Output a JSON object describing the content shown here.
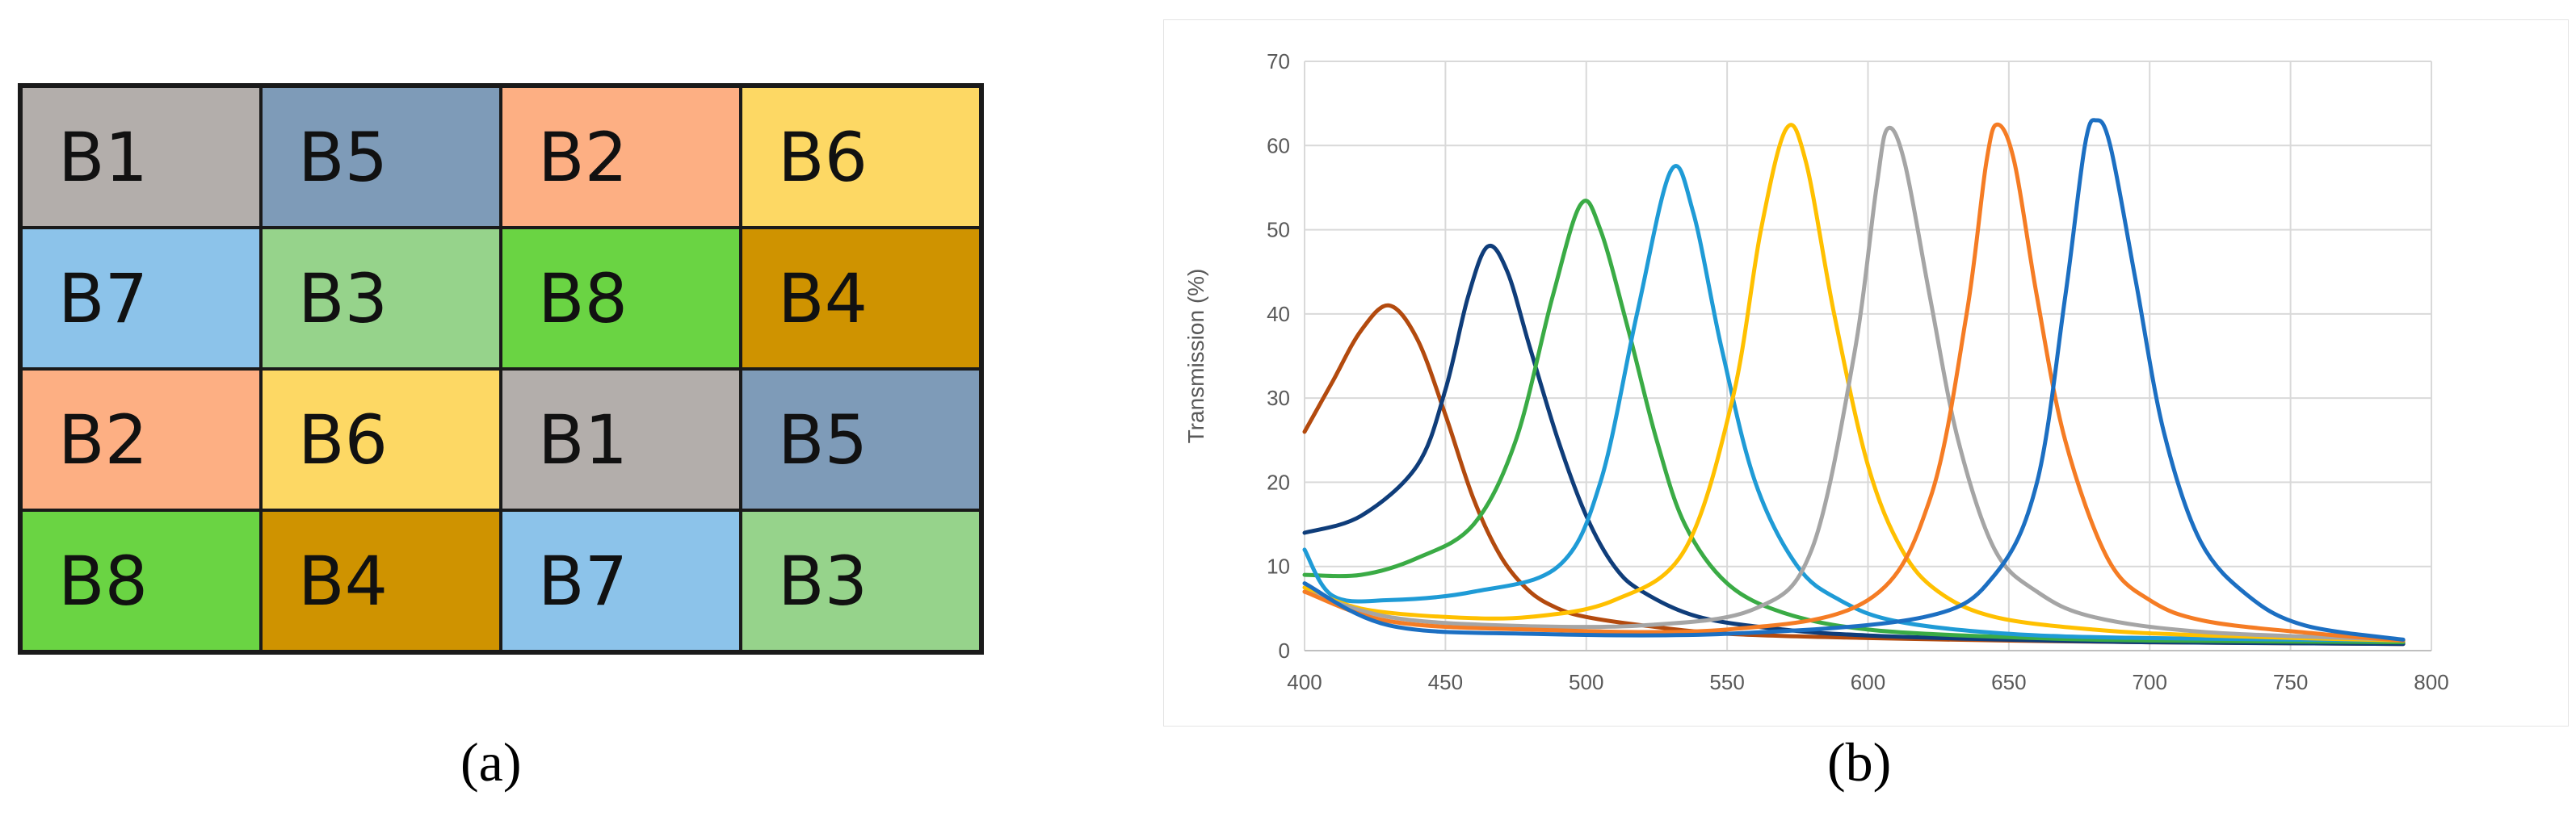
{
  "panel_a": {
    "label": "(a)",
    "rows": [
      [
        {
          "text": "B1",
          "color": "#b3aeab"
        },
        {
          "text": "B5",
          "color": "#7e9bb8"
        },
        {
          "text": "B2",
          "color": "#fdaf83"
        },
        {
          "text": "B6",
          "color": "#fdd864"
        }
      ],
      [
        {
          "text": "B7",
          "color": "#8cc3ea"
        },
        {
          "text": "B3",
          "color": "#96d38b"
        },
        {
          "text": "B8",
          "color": "#6ad443"
        },
        {
          "text": "B4",
          "color": "#cf9300"
        }
      ],
      [
        {
          "text": "B2",
          "color": "#fdaf83"
        },
        {
          "text": "B6",
          "color": "#fdd864"
        },
        {
          "text": "B1",
          "color": "#b3aeab"
        },
        {
          "text": "B5",
          "color": "#7e9bb8"
        }
      ],
      [
        {
          "text": "B8",
          "color": "#6ad443"
        },
        {
          "text": "B4",
          "color": "#cf9300"
        },
        {
          "text": "B7",
          "color": "#8cc3ea"
        },
        {
          "text": "B3",
          "color": "#96d38b"
        }
      ]
    ]
  },
  "panel_b": {
    "label": "(b)"
  },
  "chart_data": {
    "type": "line",
    "title": "",
    "xlabel": "",
    "ylabel": "Transmission (%)",
    "xlim": [
      400,
      800
    ],
    "ylim": [
      0,
      70
    ],
    "xticks": [
      400,
      450,
      500,
      550,
      600,
      650,
      700,
      750,
      800
    ],
    "yticks": [
      0,
      10,
      20,
      30,
      40,
      50,
      60,
      70
    ],
    "grid": true,
    "legend": "none",
    "series": [
      {
        "color": "#b34a0e",
        "points": [
          [
            400,
            26
          ],
          [
            410,
            32
          ],
          [
            420,
            38
          ],
          [
            430,
            41
          ],
          [
            440,
            37
          ],
          [
            450,
            28
          ],
          [
            460,
            18
          ],
          [
            470,
            11
          ],
          [
            480,
            7
          ],
          [
            490,
            5
          ],
          [
            500,
            4
          ],
          [
            520,
            3
          ],
          [
            550,
            2
          ],
          [
            600,
            1.5
          ],
          [
            650,
            1.2
          ],
          [
            700,
            1
          ],
          [
            790,
            0.8
          ]
        ]
      },
      {
        "color": "#0f3d7a",
        "points": [
          [
            400,
            14
          ],
          [
            420,
            16
          ],
          [
            440,
            22
          ],
          [
            450,
            31
          ],
          [
            458,
            42
          ],
          [
            465,
            48
          ],
          [
            472,
            45
          ],
          [
            480,
            36
          ],
          [
            490,
            25
          ],
          [
            500,
            16
          ],
          [
            510,
            10
          ],
          [
            520,
            7
          ],
          [
            540,
            4
          ],
          [
            570,
            2.5
          ],
          [
            600,
            1.8
          ],
          [
            650,
            1.3
          ],
          [
            700,
            1
          ],
          [
            790,
            0.8
          ]
        ]
      },
      {
        "color": "#3aab45",
        "points": [
          [
            400,
            9
          ],
          [
            420,
            9
          ],
          [
            440,
            11
          ],
          [
            460,
            15
          ],
          [
            475,
            25
          ],
          [
            488,
            42
          ],
          [
            498,
            53
          ],
          [
            505,
            50
          ],
          [
            515,
            38
          ],
          [
            525,
            25
          ],
          [
            535,
            15
          ],
          [
            550,
            8
          ],
          [
            570,
            4.5
          ],
          [
            600,
            2.5
          ],
          [
            650,
            1.6
          ],
          [
            700,
            1.2
          ],
          [
            790,
            1
          ]
        ]
      },
      {
        "color": "#1f9bd6",
        "points": [
          [
            400,
            12
          ],
          [
            410,
            6.5
          ],
          [
            430,
            6
          ],
          [
            460,
            7
          ],
          [
            490,
            10
          ],
          [
            505,
            20
          ],
          [
            518,
            40
          ],
          [
            530,
            57
          ],
          [
            538,
            52
          ],
          [
            548,
            36
          ],
          [
            560,
            20
          ],
          [
            575,
            10
          ],
          [
            590,
            6
          ],
          [
            610,
            3.5
          ],
          [
            650,
            2
          ],
          [
            700,
            1.5
          ],
          [
            790,
            1.2
          ]
        ]
      },
      {
        "color": "#ffc000",
        "points": [
          [
            400,
            7.5
          ],
          [
            420,
            5
          ],
          [
            450,
            4
          ],
          [
            480,
            4
          ],
          [
            510,
            6
          ],
          [
            535,
            12
          ],
          [
            552,
            30
          ],
          [
            562,
            50
          ],
          [
            571,
            62
          ],
          [
            578,
            58
          ],
          [
            588,
            40
          ],
          [
            600,
            22
          ],
          [
            612,
            12
          ],
          [
            625,
            7
          ],
          [
            645,
            4
          ],
          [
            680,
            2.5
          ],
          [
            720,
            1.8
          ],
          [
            790,
            1.2
          ]
        ]
      },
      {
        "color": "#a5a5a5",
        "points": [
          [
            400,
            7
          ],
          [
            430,
            4
          ],
          [
            470,
            3
          ],
          [
            520,
            3
          ],
          [
            560,
            5
          ],
          [
            580,
            12
          ],
          [
            595,
            35
          ],
          [
            603,
            55
          ],
          [
            607,
            62
          ],
          [
            613,
            58
          ],
          [
            622,
            42
          ],
          [
            632,
            25
          ],
          [
            645,
            12
          ],
          [
            660,
            7
          ],
          [
            680,
            4
          ],
          [
            720,
            2.2
          ],
          [
            790,
            1.3
          ]
        ]
      },
      {
        "color": "#f57c24",
        "points": [
          [
            400,
            7
          ],
          [
            430,
            3.5
          ],
          [
            480,
            2.5
          ],
          [
            550,
            2.5
          ],
          [
            600,
            6
          ],
          [
            622,
            18
          ],
          [
            635,
            40
          ],
          [
            642,
            58
          ],
          [
            646,
            62.5
          ],
          [
            652,
            58
          ],
          [
            660,
            42
          ],
          [
            670,
            25
          ],
          [
            685,
            11
          ],
          [
            700,
            6
          ],
          [
            720,
            3.5
          ],
          [
            760,
            2
          ],
          [
            790,
            1.2
          ]
        ]
      },
      {
        "color": "#1c6fc2",
        "points": [
          [
            400,
            8
          ],
          [
            430,
            3
          ],
          [
            480,
            2
          ],
          [
            550,
            2
          ],
          [
            620,
            4
          ],
          [
            645,
            9
          ],
          [
            660,
            20
          ],
          [
            670,
            42
          ],
          [
            677,
            60
          ],
          [
            681,
            63
          ],
          [
            686,
            60
          ],
          [
            695,
            44
          ],
          [
            705,
            26
          ],
          [
            718,
            13
          ],
          [
            735,
            6.5
          ],
          [
            755,
            3
          ],
          [
            790,
            1.3
          ]
        ]
      }
    ]
  }
}
